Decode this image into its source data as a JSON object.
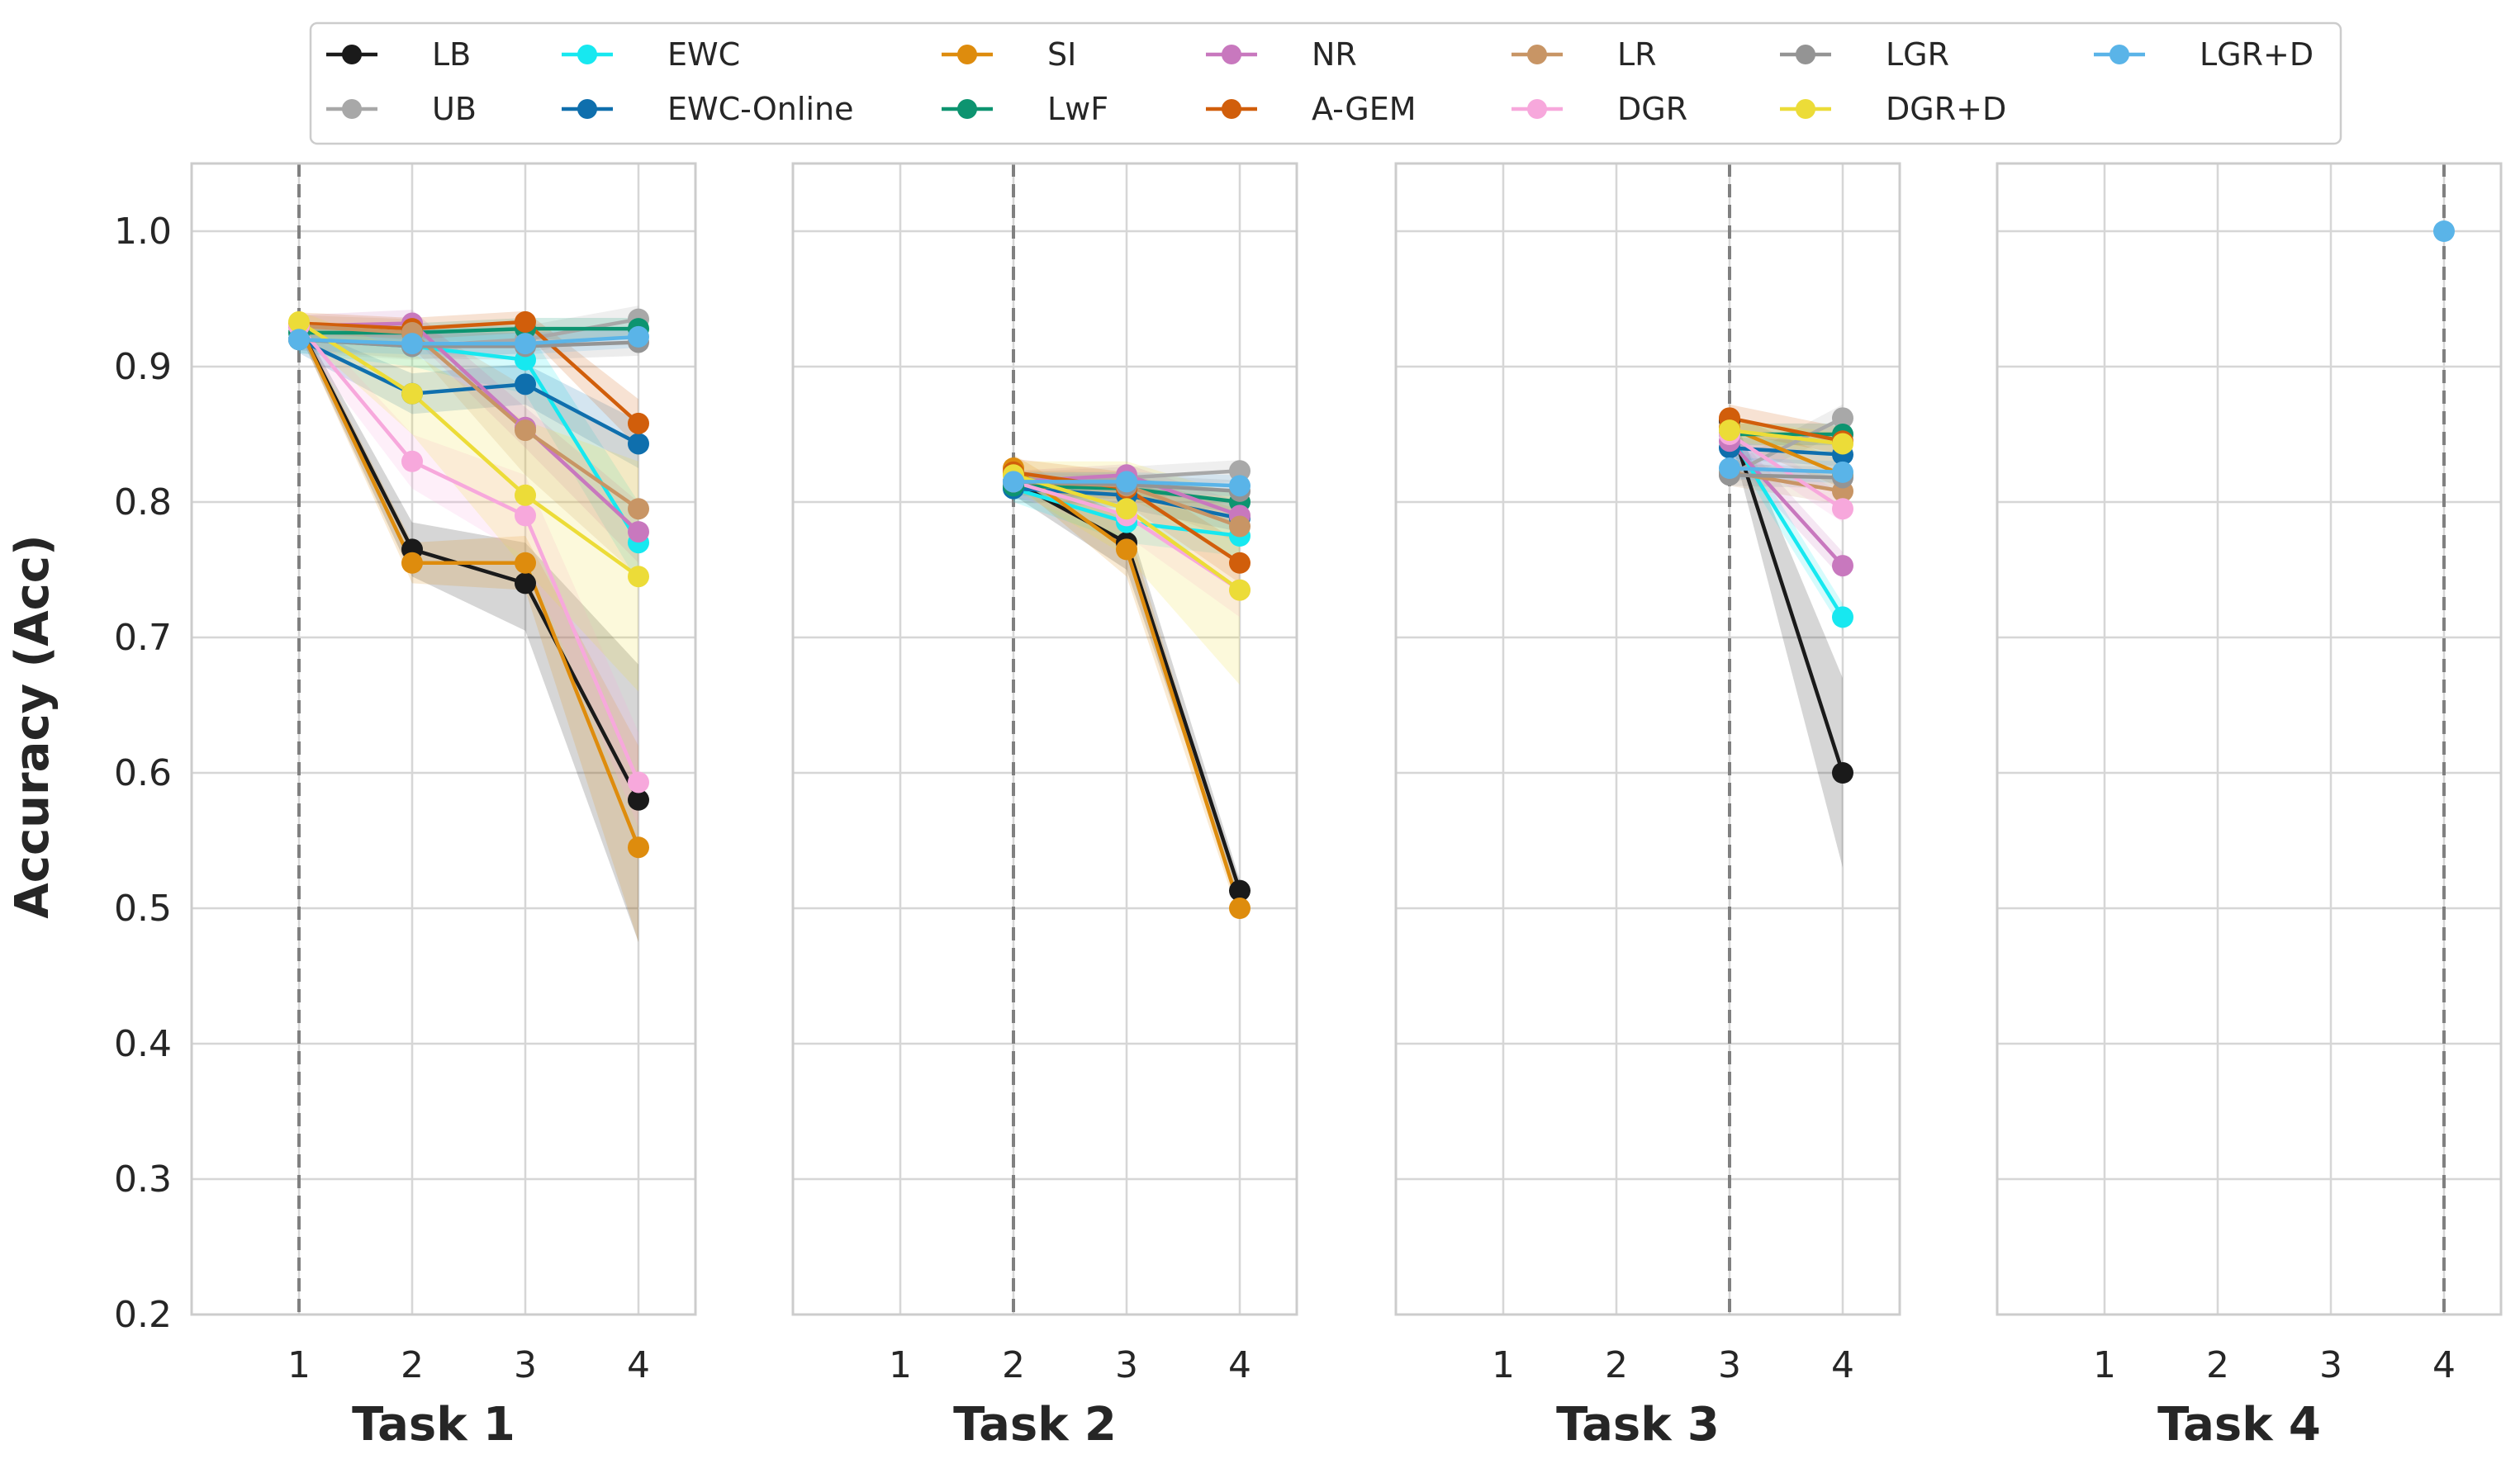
{
  "chart_data": {
    "type": "line",
    "ylabel": "Accuracy (Acc)",
    "ylim": [
      0.2,
      1.05
    ],
    "yticks": [
      0.2,
      0.3,
      0.4,
      0.5,
      0.6,
      0.7,
      0.8,
      0.9,
      1.0
    ],
    "ytick_labels": [
      "0.2",
      "0.3",
      "0.4",
      "0.5",
      "0.6",
      "0.7",
      "0.8",
      "0.9",
      "1.0"
    ],
    "x_categories": [
      1,
      2,
      3,
      4
    ],
    "xtick_labels": [
      "1",
      "2",
      "3",
      "4"
    ],
    "grid": true,
    "legend_position": "top",
    "methods": [
      {
        "name": "LB",
        "color": "#1a1a1a"
      },
      {
        "name": "UB",
        "color": "#a8a8a8"
      },
      {
        "name": "EWC",
        "color": "#17e8f0"
      },
      {
        "name": "EWC-Online",
        "color": "#0f6fad"
      },
      {
        "name": "SI",
        "color": "#de8c0d"
      },
      {
        "name": "LwF",
        "color": "#0d9470"
      },
      {
        "name": "NR",
        "color": "#c878be"
      },
      {
        "name": "A-GEM",
        "color": "#d15e0b"
      },
      {
        "name": "LR",
        "color": "#c89565"
      },
      {
        "name": "DGR",
        "color": "#f7a8dc"
      },
      {
        "name": "LGR",
        "color": "#949494"
      },
      {
        "name": "DGR+D",
        "color": "#ecdc38"
      },
      {
        "name": "LGR+D",
        "color": "#5ab4e8"
      }
    ],
    "panels": [
      {
        "title": "Task 1",
        "task_marker": 1,
        "series": [
          {
            "name": "LB",
            "x": [
              1,
              2,
              3,
              4
            ],
            "values": [
              0.93,
              0.765,
              0.74,
              0.58
            ],
            "lower": [
              0.925,
              0.745,
              0.705,
              0.475
            ],
            "upper": [
              0.935,
              0.785,
              0.77,
              0.68
            ]
          },
          {
            "name": "UB",
            "x": [
              1,
              2,
              3,
              4
            ],
            "values": [
              0.92,
              0.915,
              0.92,
              0.935
            ],
            "lower": [
              0.91,
              0.905,
              0.91,
              0.925
            ],
            "upper": [
              0.93,
              0.925,
              0.93,
              0.945
            ]
          },
          {
            "name": "EWC",
            "x": [
              1,
              2,
              3,
              4
            ],
            "values": [
              0.92,
              0.915,
              0.905,
              0.77
            ],
            "lower": [
              0.91,
              0.9,
              0.88,
              0.74
            ],
            "upper": [
              0.93,
              0.93,
              0.93,
              0.8
            ]
          },
          {
            "name": "EWC-Online",
            "x": [
              1,
              2,
              3,
              4
            ],
            "values": [
              0.92,
              0.88,
              0.887,
              0.843
            ],
            "lower": [
              0.91,
              0.865,
              0.872,
              0.825
            ],
            "upper": [
              0.93,
              0.895,
              0.902,
              0.86
            ]
          },
          {
            "name": "SI",
            "x": [
              1,
              2,
              3,
              4
            ],
            "values": [
              0.93,
              0.755,
              0.755,
              0.545
            ],
            "lower": [
              0.925,
              0.74,
              0.735,
              0.475
            ],
            "upper": [
              0.935,
              0.77,
              0.775,
              0.62
            ]
          },
          {
            "name": "LwF",
            "x": [
              1,
              2,
              3,
              4
            ],
            "values": [
              0.925,
              0.925,
              0.928,
              0.928
            ],
            "lower": [
              0.918,
              0.918,
              0.92,
              0.92
            ],
            "upper": [
              0.932,
              0.932,
              0.936,
              0.936
            ]
          },
          {
            "name": "NR",
            "x": [
              1,
              2,
              3,
              4
            ],
            "values": [
              0.93,
              0.932,
              0.855,
              0.778
            ],
            "lower": [
              0.922,
              0.922,
              0.84,
              0.755
            ],
            "upper": [
              0.938,
              0.942,
              0.87,
              0.8
            ]
          },
          {
            "name": "A-GEM",
            "x": [
              1,
              2,
              3,
              4
            ],
            "values": [
              0.932,
              0.928,
              0.933,
              0.858
            ],
            "lower": [
              0.925,
              0.92,
              0.925,
              0.84
            ],
            "upper": [
              0.94,
              0.936,
              0.941,
              0.876
            ]
          },
          {
            "name": "LR",
            "x": [
              1,
              2,
              3,
              4
            ],
            "values": [
              0.93,
              0.925,
              0.853,
              0.795
            ],
            "lower": [
              0.922,
              0.915,
              0.82,
              0.745
            ],
            "upper": [
              0.938,
              0.935,
              0.885,
              0.845
            ]
          },
          {
            "name": "DGR",
            "x": [
              1,
              2,
              3,
              4
            ],
            "values": [
              0.93,
              0.83,
              0.79,
              0.593
            ],
            "lower": [
              0.92,
              0.81,
              0.76,
              0.56
            ],
            "upper": [
              0.94,
              0.85,
              0.82,
              0.63
            ]
          },
          {
            "name": "LGR",
            "x": [
              1,
              2,
              3,
              4
            ],
            "values": [
              0.92,
              0.915,
              0.915,
              0.918
            ],
            "lower": [
              0.912,
              0.906,
              0.905,
              0.908
            ],
            "upper": [
              0.928,
              0.924,
              0.925,
              0.928
            ]
          },
          {
            "name": "DGR+D",
            "x": [
              1,
              2,
              3,
              4
            ],
            "values": [
              0.933,
              0.88,
              0.805,
              0.745
            ],
            "lower": [
              0.925,
              0.85,
              0.75,
              0.66
            ],
            "upper": [
              0.941,
              0.91,
              0.86,
              0.83
            ]
          },
          {
            "name": "LGR+D",
            "x": [
              1,
              2,
              3,
              4
            ],
            "values": [
              0.92,
              0.917,
              0.917,
              0.922
            ],
            "lower": [
              0.912,
              0.909,
              0.909,
              0.914
            ],
            "upper": [
              0.928,
              0.925,
              0.925,
              0.93
            ]
          }
        ]
      },
      {
        "title": "Task 2",
        "task_marker": 2,
        "series": [
          {
            "name": "LB",
            "x": [
              2,
              3,
              4
            ],
            "values": [
              0.815,
              0.77,
              0.513
            ],
            "lower": [
              0.805,
              0.75,
              0.505
            ],
            "upper": [
              0.825,
              0.79,
              0.521
            ]
          },
          {
            "name": "UB",
            "x": [
              2,
              3,
              4
            ],
            "values": [
              0.815,
              0.818,
              0.823
            ],
            "lower": [
              0.808,
              0.81,
              0.815
            ],
            "upper": [
              0.822,
              0.826,
              0.831
            ]
          },
          {
            "name": "EWC",
            "x": [
              2,
              3,
              4
            ],
            "values": [
              0.81,
              0.785,
              0.775
            ],
            "lower": [
              0.8,
              0.77,
              0.76
            ],
            "upper": [
              0.82,
              0.8,
              0.79
            ]
          },
          {
            "name": "EWC-Online",
            "x": [
              2,
              3,
              4
            ],
            "values": [
              0.81,
              0.805,
              0.788
            ],
            "lower": [
              0.802,
              0.795,
              0.778
            ],
            "upper": [
              0.818,
              0.815,
              0.798
            ]
          },
          {
            "name": "SI",
            "x": [
              2,
              3,
              4
            ],
            "values": [
              0.825,
              0.765,
              0.5
            ],
            "lower": [
              0.815,
              0.745,
              0.492
            ],
            "upper": [
              0.835,
              0.785,
              0.508
            ]
          },
          {
            "name": "LwF",
            "x": [
              2,
              3,
              4
            ],
            "values": [
              0.812,
              0.81,
              0.8
            ],
            "lower": [
              0.805,
              0.802,
              0.792
            ],
            "upper": [
              0.819,
              0.818,
              0.808
            ]
          },
          {
            "name": "NR",
            "x": [
              2,
              3,
              4
            ],
            "values": [
              0.815,
              0.82,
              0.79
            ],
            "lower": [
              0.807,
              0.812,
              0.78
            ],
            "upper": [
              0.823,
              0.828,
              0.8
            ]
          },
          {
            "name": "A-GEM",
            "x": [
              2,
              3,
              4
            ],
            "values": [
              0.822,
              0.81,
              0.755
            ],
            "lower": [
              0.812,
              0.798,
              0.74
            ],
            "upper": [
              0.832,
              0.822,
              0.77
            ]
          },
          {
            "name": "LR",
            "x": [
              2,
              3,
              4
            ],
            "values": [
              0.815,
              0.812,
              0.782
            ],
            "lower": [
              0.807,
              0.802,
              0.77
            ],
            "upper": [
              0.823,
              0.822,
              0.794
            ]
          },
          {
            "name": "DGR",
            "x": [
              2,
              3,
              4
            ],
            "values": [
              0.815,
              0.79,
              0.735
            ],
            "lower": [
              0.805,
              0.775,
              0.715
            ],
            "upper": [
              0.825,
              0.805,
              0.755
            ]
          },
          {
            "name": "LGR",
            "x": [
              2,
              3,
              4
            ],
            "values": [
              0.815,
              0.813,
              0.808
            ],
            "lower": [
              0.808,
              0.806,
              0.8
            ],
            "upper": [
              0.822,
              0.82,
              0.816
            ]
          },
          {
            "name": "DGR+D",
            "x": [
              2,
              3,
              4
            ],
            "values": [
              0.82,
              0.795,
              0.735
            ],
            "lower": [
              0.81,
              0.76,
              0.665
            ],
            "upper": [
              0.83,
              0.83,
              0.805
            ]
          },
          {
            "name": "LGR+D",
            "x": [
              2,
              3,
              4
            ],
            "values": [
              0.815,
              0.815,
              0.812
            ],
            "lower": [
              0.808,
              0.808,
              0.804
            ],
            "upper": [
              0.822,
              0.822,
              0.82
            ]
          }
        ]
      },
      {
        "title": "Task 3",
        "task_marker": 3,
        "series": [
          {
            "name": "LB",
            "x": [
              3,
              4
            ],
            "values": [
              0.86,
              0.6
            ],
            "lower": [
              0.85,
              0.53
            ],
            "upper": [
              0.87,
              0.67
            ]
          },
          {
            "name": "UB",
            "x": [
              3,
              4
            ],
            "values": [
              0.82,
              0.862
            ],
            "lower": [
              0.812,
              0.852
            ],
            "upper": [
              0.828,
              0.872
            ]
          },
          {
            "name": "EWC",
            "x": [
              3,
              4
            ],
            "values": [
              0.85,
              0.715
            ],
            "lower": [
              0.84,
              0.705
            ],
            "upper": [
              0.86,
              0.725
            ]
          },
          {
            "name": "EWC-Online",
            "x": [
              3,
              4
            ],
            "values": [
              0.84,
              0.835
            ],
            "lower": [
              0.832,
              0.826
            ],
            "upper": [
              0.848,
              0.844
            ]
          },
          {
            "name": "SI",
            "x": [
              3,
              4
            ],
            "values": [
              0.855,
              0.82
            ],
            "lower": [
              0.845,
              0.81
            ],
            "upper": [
              0.865,
              0.83
            ]
          },
          {
            "name": "LwF",
            "x": [
              3,
              4
            ],
            "values": [
              0.85,
              0.85
            ],
            "lower": [
              0.842,
              0.842
            ],
            "upper": [
              0.858,
              0.858
            ]
          },
          {
            "name": "NR",
            "x": [
              3,
              4
            ],
            "values": [
              0.845,
              0.753
            ],
            "lower": [
              0.835,
              0.743
            ],
            "upper": [
              0.855,
              0.763
            ]
          },
          {
            "name": "A-GEM",
            "x": [
              3,
              4
            ],
            "values": [
              0.862,
              0.845
            ],
            "lower": [
              0.852,
              0.835
            ],
            "upper": [
              0.872,
              0.855
            ]
          },
          {
            "name": "LR",
            "x": [
              3,
              4
            ],
            "values": [
              0.822,
              0.808
            ],
            "lower": [
              0.812,
              0.798
            ],
            "upper": [
              0.832,
              0.818
            ]
          },
          {
            "name": "DGR",
            "x": [
              3,
              4
            ],
            "values": [
              0.85,
              0.795
            ],
            "lower": [
              0.84,
              0.785
            ],
            "upper": [
              0.86,
              0.805
            ]
          },
          {
            "name": "LGR",
            "x": [
              3,
              4
            ],
            "values": [
              0.82,
              0.818
            ],
            "lower": [
              0.812,
              0.81
            ],
            "upper": [
              0.828,
              0.826
            ]
          },
          {
            "name": "DGR+D",
            "x": [
              3,
              4
            ],
            "values": [
              0.853,
              0.843
            ],
            "lower": [
              0.845,
              0.835
            ],
            "upper": [
              0.861,
              0.851
            ]
          },
          {
            "name": "LGR+D",
            "x": [
              3,
              4
            ],
            "values": [
              0.825,
              0.822
            ],
            "lower": [
              0.817,
              0.814
            ],
            "upper": [
              0.833,
              0.83
            ]
          }
        ]
      },
      {
        "title": "Task 4",
        "task_marker": 4,
        "series": [
          {
            "name": "LGR+D",
            "x": [
              4
            ],
            "values": [
              1.0
            ],
            "lower": [
              1.0
            ],
            "upper": [
              1.0
            ]
          }
        ]
      }
    ]
  }
}
